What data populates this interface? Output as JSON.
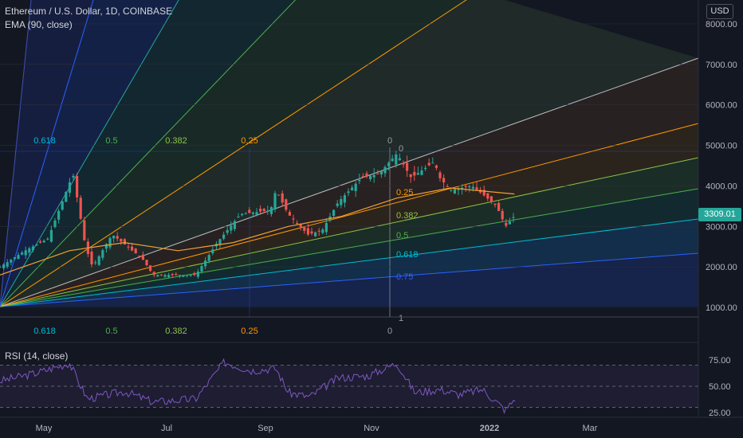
{
  "header": {
    "symbol_line": "Ethereum / U.S. Dollar, 1D, COINBASE",
    "indicator_line": "EMA (90, close)",
    "rsi_label": "RSI (14, close)",
    "currency_button": "USD",
    "last_price": "3309.01"
  },
  "colors": {
    "background": "#131722",
    "up": "#26a69a",
    "down": "#ef5350",
    "ema": "#f0a030",
    "rsi": "#7e57c2",
    "fan": [
      "#1e3c8c",
      "#2962ff",
      "#00bcd4",
      "#4caf50",
      "#8bc34a",
      "#ff9800",
      "#bdbdbd",
      "#ff9800",
      "#4caf50",
      "#26a69a",
      "#2962ff",
      "#3f51b5"
    ]
  },
  "chart_data": [
    {
      "type": "candlestick",
      "title": "Ethereum / U.S. Dollar, 1D, COINBASE",
      "x_ticks": [
        "May",
        "Jul",
        "Sep",
        "Nov",
        "2022",
        "Mar"
      ],
      "y_ticks": [
        "1000.00",
        "2000.00",
        "3000.00",
        "4000.00",
        "5000.00",
        "6000.00",
        "7000.00",
        "8000.00"
      ],
      "ylim": [
        700,
        8400
      ],
      "last_price": 3309.01,
      "price_path": [
        [
          "2021-04-01",
          2000
        ],
        [
          "2021-04-15",
          2400
        ],
        [
          "2021-04-28",
          2700
        ],
        [
          "2021-05-12",
          4300
        ],
        [
          "2021-05-19",
          2500
        ],
        [
          "2021-05-23",
          2000
        ],
        [
          "2021-06-03",
          2800
        ],
        [
          "2021-06-20",
          2200
        ],
        [
          "2021-06-26",
          1800
        ],
        [
          "2021-07-20",
          1800
        ],
        [
          "2021-08-01",
          2600
        ],
        [
          "2021-08-14",
          3300
        ],
        [
          "2021-08-31",
          3400
        ],
        [
          "2021-09-03",
          3900
        ],
        [
          "2021-09-10",
          3300
        ],
        [
          "2021-09-21",
          2800
        ],
        [
          "2021-09-29",
          2900
        ],
        [
          "2021-10-08",
          3600
        ],
        [
          "2021-10-21",
          4200
        ],
        [
          "2021-10-31",
          4300
        ],
        [
          "2021-11-10",
          4800
        ],
        [
          "2021-11-18",
          4200
        ],
        [
          "2021-12-01",
          4600
        ],
        [
          "2021-12-04",
          4200
        ],
        [
          "2021-12-10",
          3900
        ],
        [
          "2021-12-22",
          4000
        ],
        [
          "2021-12-28",
          3800
        ],
        [
          "2022-01-05",
          3500
        ],
        [
          "2022-01-10",
          3000
        ],
        [
          "2022-01-16",
          3309
        ]
      ],
      "ema_90_path": [
        [
          "2021-04-01",
          1800
        ],
        [
          "2021-05-10",
          2400
        ],
        [
          "2021-06-10",
          2600
        ],
        [
          "2021-07-10",
          2400
        ],
        [
          "2021-08-10",
          2600
        ],
        [
          "2021-09-10",
          3000
        ],
        [
          "2021-10-10",
          3250
        ],
        [
          "2021-11-10",
          3700
        ],
        [
          "2021-12-10",
          3950
        ],
        [
          "2022-01-15",
          3800
        ]
      ],
      "fan_labels_top": [
        "0.618",
        "0.5",
        "0.382",
        "0.25",
        "0"
      ],
      "fan_labels_bottom": [
        "0.618",
        "0.5",
        "0.382",
        "0.25",
        "0"
      ],
      "fan_labels_right": [
        "0",
        "0.25",
        "0.382",
        "0.5",
        "0.618",
        "0.75",
        "1"
      ]
    },
    {
      "type": "line",
      "title": "RSI (14, close)",
      "y_ticks": [
        "25.00",
        "50.00",
        "75.00"
      ],
      "ylim": [
        20,
        85
      ],
      "bands": [
        30,
        50,
        70
      ],
      "values_path": [
        [
          "2021-04-01",
          55
        ],
        [
          "2021-04-20",
          62
        ],
        [
          "2021-05-10",
          72
        ],
        [
          "2021-05-20",
          38
        ],
        [
          "2021-06-10",
          45
        ],
        [
          "2021-06-26",
          35
        ],
        [
          "2021-07-20",
          38
        ],
        [
          "2021-08-05",
          73
        ],
        [
          "2021-08-20",
          65
        ],
        [
          "2021-09-03",
          67
        ],
        [
          "2021-09-10",
          44
        ],
        [
          "2021-09-22",
          40
        ],
        [
          "2021-10-08",
          58
        ],
        [
          "2021-10-25",
          60
        ],
        [
          "2021-11-10",
          72
        ],
        [
          "2021-11-20",
          44
        ],
        [
          "2021-12-04",
          47
        ],
        [
          "2021-12-15",
          42
        ],
        [
          "2021-12-28",
          47
        ],
        [
          "2022-01-05",
          35
        ],
        [
          "2022-01-10",
          27
        ],
        [
          "2022-01-16",
          40
        ]
      ]
    }
  ]
}
